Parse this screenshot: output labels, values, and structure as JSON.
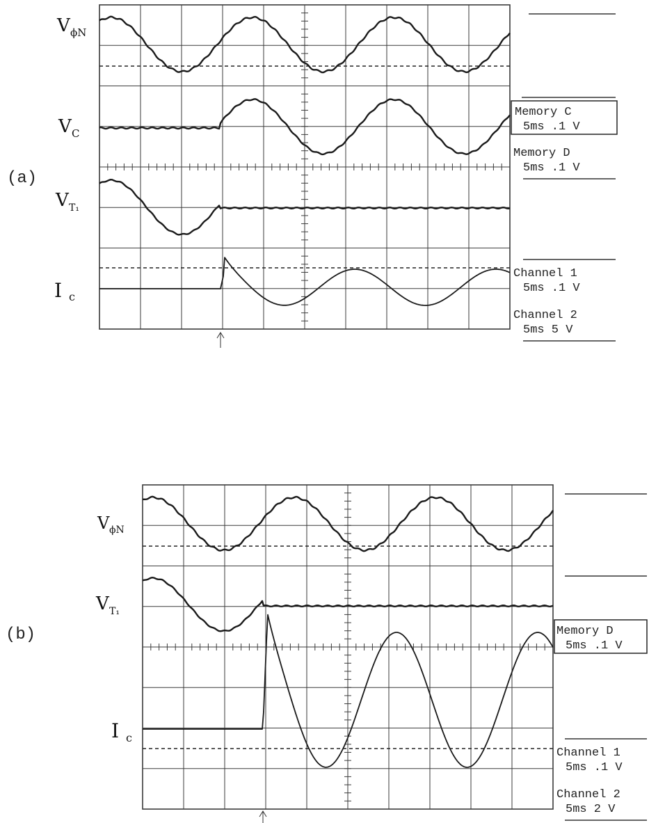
{
  "panels": [
    {
      "id": "a",
      "label": "(a)",
      "trace_labels": [
        {
          "main": "V",
          "sub": "ϕN"
        },
        {
          "main": "V",
          "sub": "C"
        },
        {
          "main": "V",
          "sub": "T₁"
        },
        {
          "main": "I",
          "sub": "c"
        }
      ],
      "readouts": [
        {
          "name": "Memory C",
          "settings": "5ms .1 V",
          "boxed": true
        },
        {
          "name": "Memory D",
          "settings": "5ms .1 V",
          "boxed": false
        },
        {
          "name": "Channel 1",
          "settings": "5ms .1 V",
          "boxed": false
        },
        {
          "name": "Channel 2",
          "settings": "5ms 5 V",
          "boxed": false
        }
      ]
    },
    {
      "id": "b",
      "label": "(b)",
      "trace_labels": [
        {
          "main": "V",
          "sub": "ϕN"
        },
        {
          "main": "V",
          "sub": "T₁"
        },
        {
          "main": "I",
          "sub": "c"
        }
      ],
      "readouts": [
        {
          "name": "Memory D",
          "settings": "5ms .1 V",
          "boxed": true
        },
        {
          "name": "Channel 1",
          "settings": "5ms .1 V",
          "boxed": false
        },
        {
          "name": "Channel 2",
          "settings": "5ms 2 V",
          "boxed": false
        }
      ]
    }
  ],
  "colors": {
    "trace": "#1a1a1a",
    "grid": "#3a3a3a",
    "background": "#ffffff"
  }
}
